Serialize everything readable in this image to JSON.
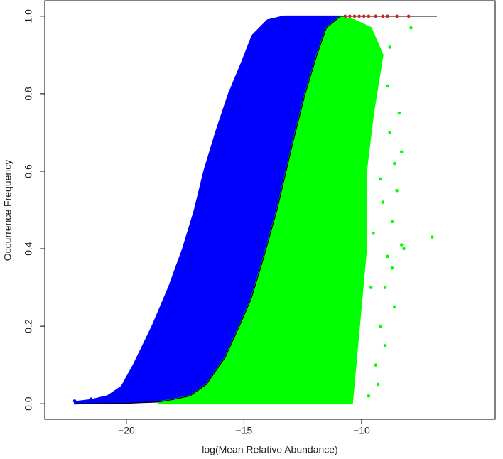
{
  "chart_data": {
    "type": "scatter",
    "xlabel": "log(Mean Relative Abundance)",
    "ylabel": "Occurrence Frequency",
    "xlim": [
      -23.47,
      -4.32
    ],
    "ylim": [
      -0.04,
      1.04
    ],
    "xticks": [
      {
        "value": -20,
        "label": "−20"
      },
      {
        "value": -15,
        "label": "−15"
      },
      {
        "value": -10,
        "label": "−10"
      }
    ],
    "yticks": [
      {
        "value": 0,
        "label": "0.0"
      },
      0.2,
      0.4,
      0.6,
      0.8,
      {
        "value": 1,
        "label": "1.0"
      }
    ],
    "series": [
      {
        "mark": "region",
        "color": "#0000ff",
        "x": [
          -22.2,
          -21.5,
          -20.8,
          -20.2,
          -19.7,
          -19.3,
          -18.9,
          -18.2,
          -17.6,
          -17.1,
          -16.7,
          -16.2,
          -15.65,
          -15.1,
          -14.65,
          -14.0,
          -13.3,
          -10.9,
          -11.5,
          -11.9,
          -12.4,
          -12.9,
          -13.6,
          -14.2,
          -14.7,
          -15.2,
          -15.8,
          -16.6,
          -17.3,
          -18.1,
          -18.6,
          -22.2
        ],
        "values": [
          0.005,
          0.01,
          0.02,
          0.045,
          0.1,
          0.15,
          0.2,
          0.3,
          0.4,
          0.5,
          0.6,
          0.7,
          0.8,
          0.88,
          0.95,
          0.99,
          1.0,
          1.0,
          0.97,
          0.9,
          0.8,
          0.68,
          0.5,
          0.37,
          0.27,
          0.2,
          0.12,
          0.05,
          0.02,
          0.01,
          0.005,
          0.0
        ]
      },
      {
        "mark": "region",
        "color": "#00ff00",
        "x": [
          -18.6,
          -18.1,
          -17.3,
          -16.6,
          -15.8,
          -15.2,
          -14.7,
          -14.2,
          -13.6,
          -12.9,
          -12.4,
          -11.9,
          -11.5,
          -10.9,
          -10.3,
          -9.6,
          -9.1,
          -9.5,
          -9.8,
          -9.8,
          -10.1,
          -10.4,
          -18.6
        ],
        "values": [
          0.005,
          0.01,
          0.02,
          0.05,
          0.12,
          0.2,
          0.27,
          0.37,
          0.5,
          0.68,
          0.8,
          0.9,
          0.97,
          1.0,
          0.99,
          0.97,
          0.9,
          0.75,
          0.6,
          0.4,
          0.2,
          0.0,
          0.0
        ]
      },
      {
        "mark": "points",
        "color": "#00ff00",
        "x": [
          -7.0,
          -8.3,
          -8.2,
          -7.9,
          -8.7,
          -8.9,
          -9.0,
          -8.5,
          -8.6,
          -8.8,
          -8.4,
          -9.2,
          -9.4,
          -9.0,
          -8.6,
          -8.9,
          -9.3,
          -9.7,
          -8.7,
          -9.1,
          -8.3,
          -9.5,
          -9.2,
          -8.8,
          -9.6
        ],
        "values": [
          0.43,
          0.41,
          0.4,
          0.97,
          0.47,
          0.38,
          0.3,
          0.55,
          0.62,
          0.7,
          0.75,
          0.2,
          0.1,
          0.15,
          0.25,
          0.82,
          0.05,
          0.02,
          0.35,
          0.52,
          0.65,
          0.44,
          0.58,
          0.92,
          0.3
        ]
      },
      {
        "mark": "points",
        "color": "#0000ff",
        "x": [
          -22.2,
          -21.5,
          -21.0,
          -20.7,
          -20.4,
          -20.1
        ],
        "values": [
          0.007,
          0.012,
          0.015,
          0.02,
          0.03,
          0.04
        ]
      },
      {
        "mark": "line",
        "color": "#000000",
        "x": [
          -22.2,
          -20,
          -18.6,
          -18.1,
          -17.3,
          -16.6,
          -15.8,
          -15.2,
          -14.7,
          -14.2,
          -13.6,
          -12.9,
          -12.4,
          -11.9,
          -11.5,
          -10.9,
          -6.8
        ],
        "values": [
          0,
          0.001,
          0.005,
          0.01,
          0.02,
          0.05,
          0.12,
          0.2,
          0.27,
          0.37,
          0.5,
          0.68,
          0.8,
          0.9,
          0.97,
          1.0,
          1.0
        ]
      },
      {
        "mark": "points",
        "color": "#cc2222",
        "x": [
          -10.7,
          -10.5,
          -10.3,
          -10.1,
          -9.9,
          -9.7,
          -9.4,
          -9.1,
          -8.9,
          -8.5,
          -8.0
        ],
        "values": [
          1.0,
          1.0,
          1.0,
          1.0,
          1.0,
          1.0,
          1.0,
          1.0,
          1.0,
          1.0,
          1.0
        ]
      }
    ]
  }
}
